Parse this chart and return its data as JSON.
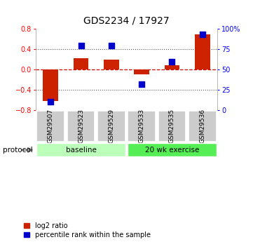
{
  "title": "GDS2234 / 17927",
  "samples": [
    "GSM29507",
    "GSM29523",
    "GSM29529",
    "GSM29533",
    "GSM29535",
    "GSM29536"
  ],
  "log2_ratio": [
    -0.62,
    0.22,
    0.2,
    -0.09,
    0.08,
    0.7
  ],
  "percentile_rank": [
    10,
    80,
    80,
    32,
    60,
    93
  ],
  "groups": [
    {
      "label": "baseline",
      "color": "#bbffbb",
      "start": 0,
      "end": 2
    },
    {
      "label": "20 wk exercise",
      "color": "#55ee55",
      "start": 3,
      "end": 5
    }
  ],
  "ylim_left": [
    -0.8,
    0.8
  ],
  "ylim_right": [
    0,
    100
  ],
  "yticks_left": [
    -0.8,
    -0.4,
    0.0,
    0.4,
    0.8
  ],
  "yticks_right": [
    0,
    25,
    50,
    75,
    100
  ],
  "bar_color": "#cc2200",
  "dot_color": "#0000cc",
  "hline_color": "#cc0000",
  "dotted_color": "#555555",
  "bg_color": "#ffffff",
  "protocol_label": "protocol",
  "legend_entries": [
    "log2 ratio",
    "percentile rank within the sample"
  ],
  "sample_box_color": "#cccccc",
  "bar_width": 0.5,
  "dot_size": 40
}
